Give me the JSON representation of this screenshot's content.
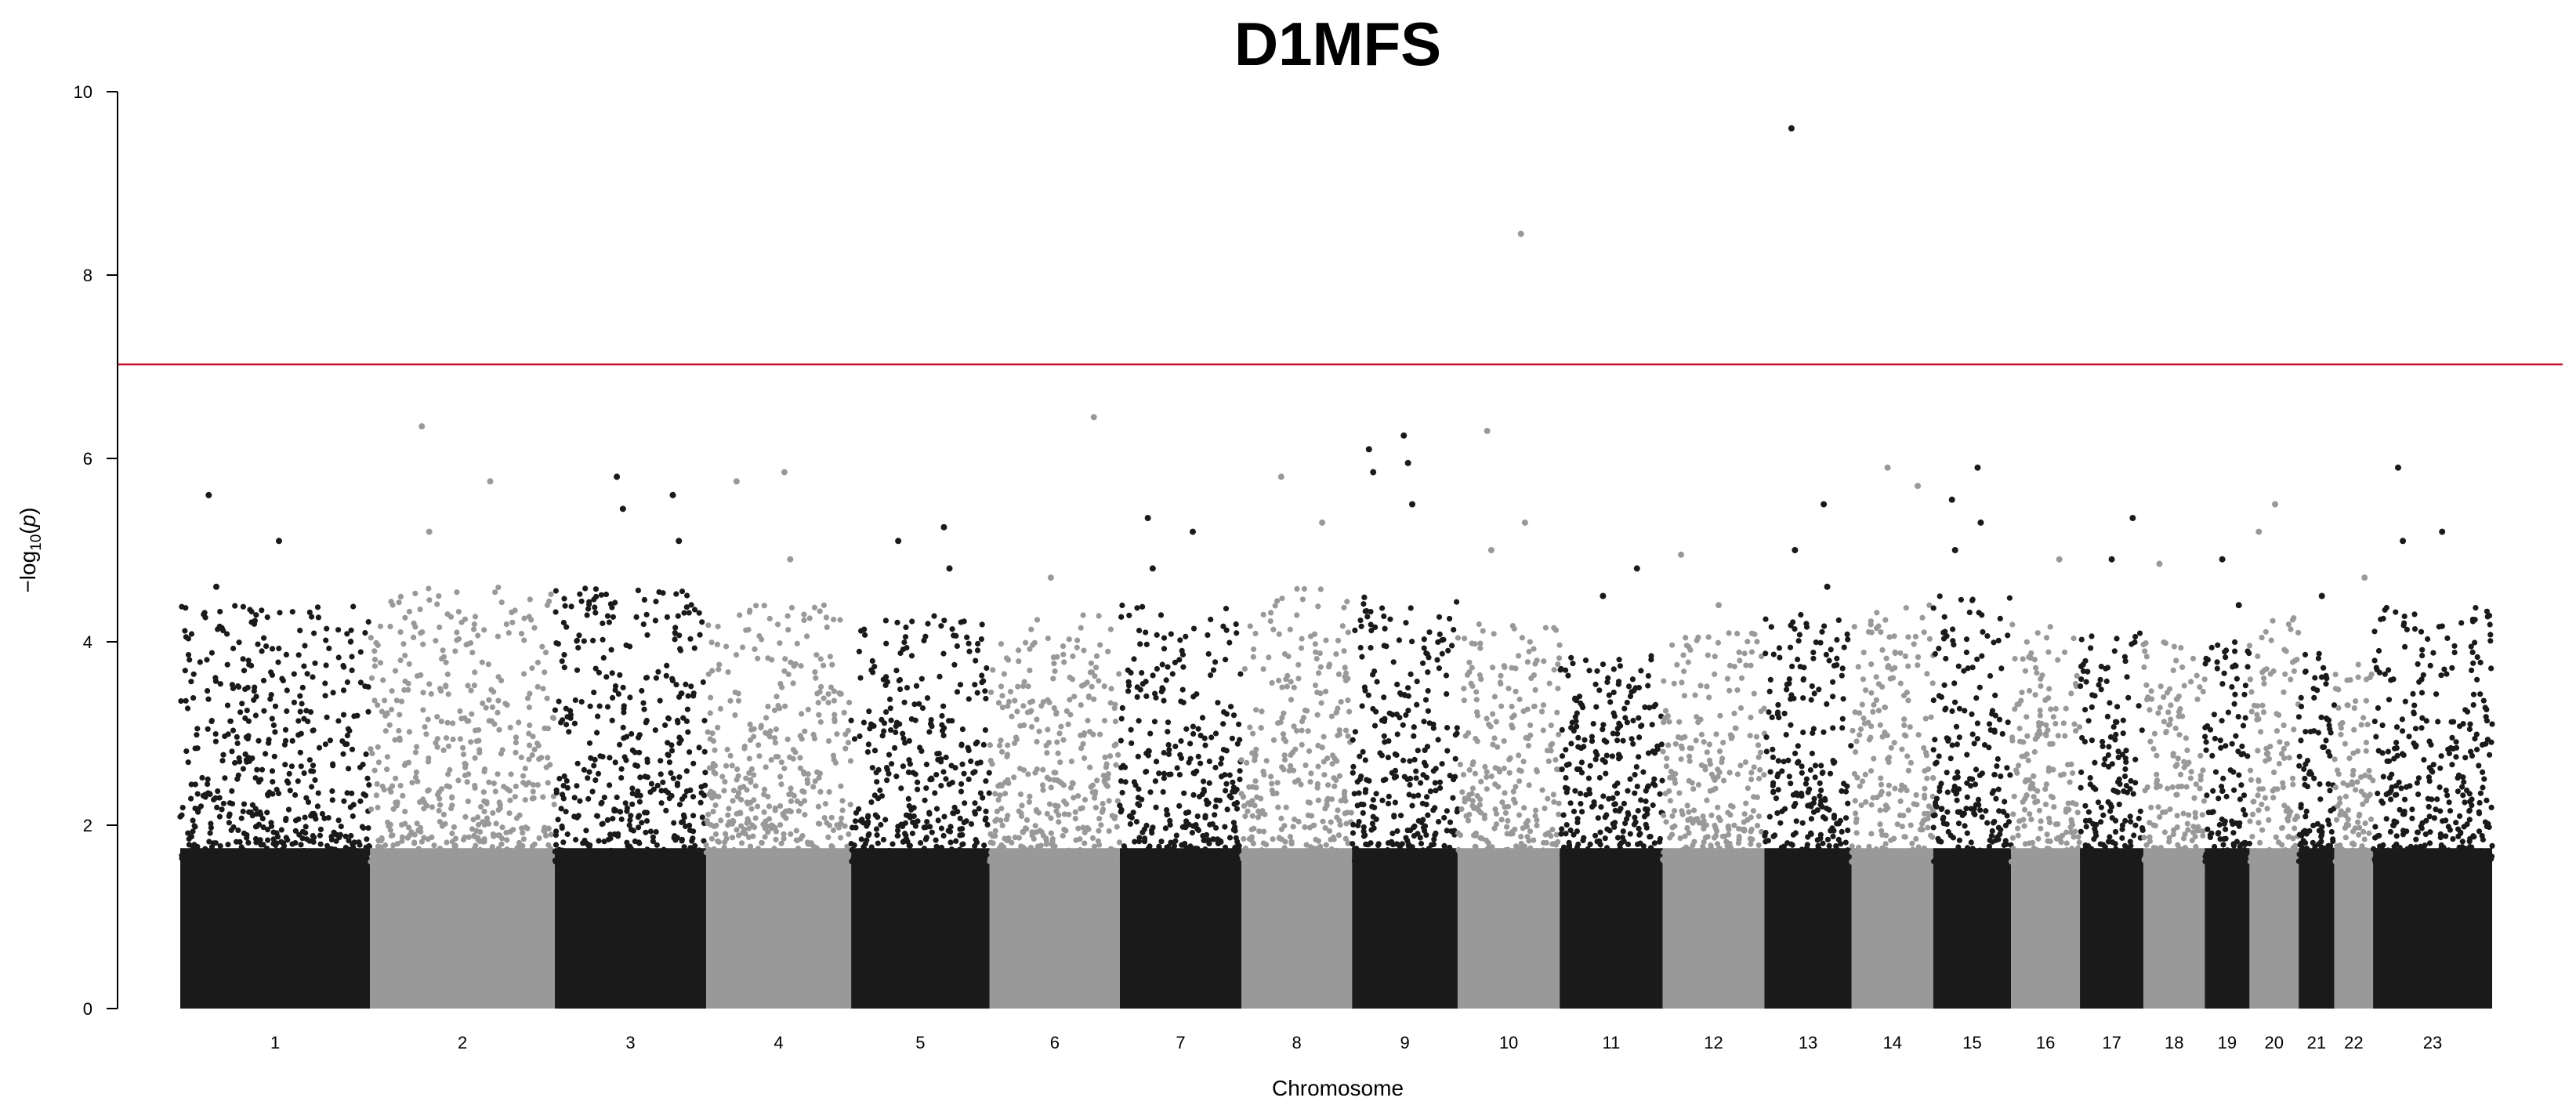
{
  "chart_data": {
    "type": "scatter",
    "subtype": "manhattan",
    "title": "D1MFS",
    "xlabel": "Chromosome",
    "ylabel": "−log10(p)",
    "ylabel_parts": {
      "prefix": "−log",
      "subscript": "10",
      "open": "(",
      "var": "p",
      "close": ")"
    },
    "ylim": [
      0,
      10
    ],
    "yticks": [
      "0",
      "2",
      "4",
      "6",
      "8",
      "10"
    ],
    "significance_line": {
      "y": 7,
      "color": "#c8102e"
    },
    "alternating_colors": [
      "#1a1a1a",
      "#999999"
    ],
    "chromosomes": [
      {
        "label": "1",
        "start": 0,
        "end": 248.9,
        "base_peak": 4.4,
        "peaks": [
          5.6,
          5.1,
          4.6
        ]
      },
      {
        "label": "2",
        "start": 248.9,
        "end": 491.1,
        "base_peak": 4.6,
        "peaks": [
          6.35,
          5.75,
          5.2
        ]
      },
      {
        "label": "3",
        "start": 491.1,
        "end": 689.4,
        "base_peak": 4.6,
        "peaks": [
          5.8,
          5.6,
          5.45,
          5.1
        ]
      },
      {
        "label": "4",
        "start": 689.4,
        "end": 879.6,
        "base_peak": 4.4,
        "peaks": [
          5.85,
          5.75,
          4.9
        ]
      },
      {
        "label": "5",
        "start": 879.6,
        "end": 1061.1,
        "base_peak": 4.3,
        "peaks": [
          5.25,
          5.1,
          4.8
        ]
      },
      {
        "label": "6",
        "start": 1061.1,
        "end": 1231.9,
        "base_peak": 4.3,
        "peaks": [
          6.45,
          4.7
        ]
      },
      {
        "label": "7",
        "start": 1231.9,
        "end": 1391.2,
        "base_peak": 4.4,
        "peaks": [
          5.35,
          5.2,
          4.8
        ]
      },
      {
        "label": "8",
        "start": 1391.2,
        "end": 1536.3,
        "base_peak": 4.6,
        "peaks": [
          5.8,
          5.3
        ]
      },
      {
        "label": "9",
        "start": 1536.3,
        "end": 1674.7,
        "base_peak": 4.5,
        "peaks": [
          6.25,
          6.1,
          5.95,
          5.85,
          5.5
        ]
      },
      {
        "label": "10",
        "start": 1674.7,
        "end": 1808.5,
        "base_peak": 4.2,
        "peaks": [
          8.45,
          6.3,
          5.3,
          5.0
        ]
      },
      {
        "label": "11",
        "start": 1808.5,
        "end": 1943.6,
        "base_peak": 3.9,
        "peaks": [
          4.8,
          4.5
        ]
      },
      {
        "label": "12",
        "start": 1943.6,
        "end": 2076.9,
        "base_peak": 4.1,
        "peaks": [
          4.95,
          4.4
        ]
      },
      {
        "label": "13",
        "start": 2076.9,
        "end": 2191.3,
        "base_peak": 4.3,
        "peaks": [
          9.6,
          5.5,
          5.0,
          4.6
        ]
      },
      {
        "label": "14",
        "start": 2191.3,
        "end": 2298.3,
        "base_peak": 4.4,
        "peaks": [
          5.9,
          5.7
        ]
      },
      {
        "label": "15",
        "start": 2298.3,
        "end": 2400.3,
        "base_peak": 4.5,
        "peaks": [
          5.9,
          5.55,
          5.3,
          5.0
        ]
      },
      {
        "label": "16",
        "start": 2400.3,
        "end": 2490.6,
        "base_peak": 4.2,
        "peaks": [
          4.9
        ]
      },
      {
        "label": "17",
        "start": 2490.6,
        "end": 2573.9,
        "base_peak": 4.1,
        "peaks": [
          5.35,
          4.9
        ]
      },
      {
        "label": "18",
        "start": 2573.9,
        "end": 2654.3,
        "base_peak": 4.0,
        "peaks": [
          4.85
        ]
      },
      {
        "label": "19",
        "start": 2654.3,
        "end": 2712.9,
        "base_peak": 4.0,
        "peaks": [
          4.9,
          4.4
        ]
      },
      {
        "label": "20",
        "start": 2712.9,
        "end": 2777.4,
        "base_peak": 4.3,
        "peaks": [
          5.5,
          5.2
        ]
      },
      {
        "label": "21",
        "start": 2777.4,
        "end": 2824.1,
        "base_peak": 3.9,
        "peaks": [
          4.5
        ]
      },
      {
        "label": "22",
        "start": 2824.1,
        "end": 2874.9,
        "base_peak": 3.9,
        "peaks": [
          4.7
        ]
      },
      {
        "label": "23",
        "start": 2874.9,
        "end": 3031.0,
        "base_peak": 4.4,
        "peaks": [
          5.9,
          5.2,
          5.1
        ]
      }
    ]
  }
}
